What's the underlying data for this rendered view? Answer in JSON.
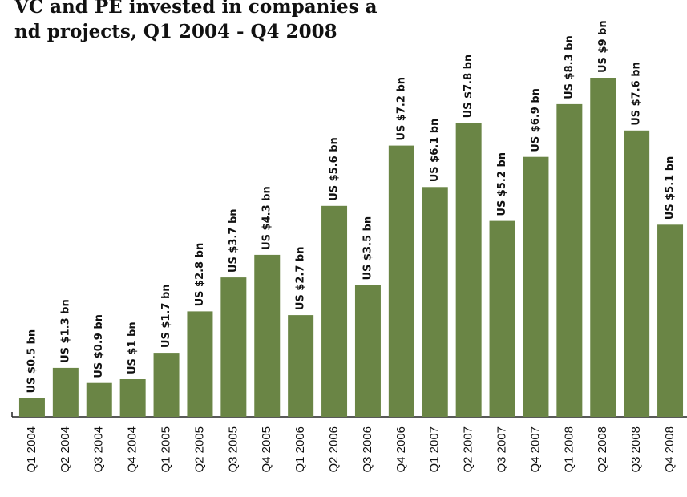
{
  "chart_data": {
    "type": "bar",
    "title": [
      "VC and PE invested in companies a",
      "nd projects, Q1 2004 - Q4 2008"
    ],
    "categories": [
      "Q1 2004",
      "Q2 2004",
      "Q3 2004",
      "Q4 2004",
      "Q1 2005",
      "Q2 2005",
      "Q3 2005",
      "Q4 2005",
      "Q1 2006",
      "Q2 2006",
      "Q3 2006",
      "Q4 2006",
      "Q1 2007",
      "Q2 2007",
      "Q3 2007",
      "Q4 2007",
      "Q1 2008",
      "Q2 2008",
      "Q3 2008",
      "Q4 2008"
    ],
    "values": [
      0.5,
      1.3,
      0.9,
      1,
      1.7,
      2.8,
      3.7,
      4.3,
      2.7,
      5.6,
      3.5,
      7.2,
      6.1,
      7.8,
      5.2,
      6.9,
      8.3,
      9,
      7.6,
      5.1
    ],
    "value_labels": [
      "US $0.5 bn",
      "US $1.3 bn",
      "US $0.9 bn",
      "US $1 bn",
      "US $1.7 bn",
      "US $2.8 bn",
      "US $3.7 bn",
      "US $4.3 bn",
      "US $2.7 bn",
      "US $5.6 bn",
      "US $3.5 bn",
      "US $7.2 bn",
      "US $6.1 bn",
      "US $7.8 bn",
      "US $5.2 bn",
      "US $6.9 bn",
      "US $8.3 bn",
      "US $9 bn",
      "US $7.6 bn",
      "US $5.1 bn"
    ],
    "color": "#6a8545"
  }
}
